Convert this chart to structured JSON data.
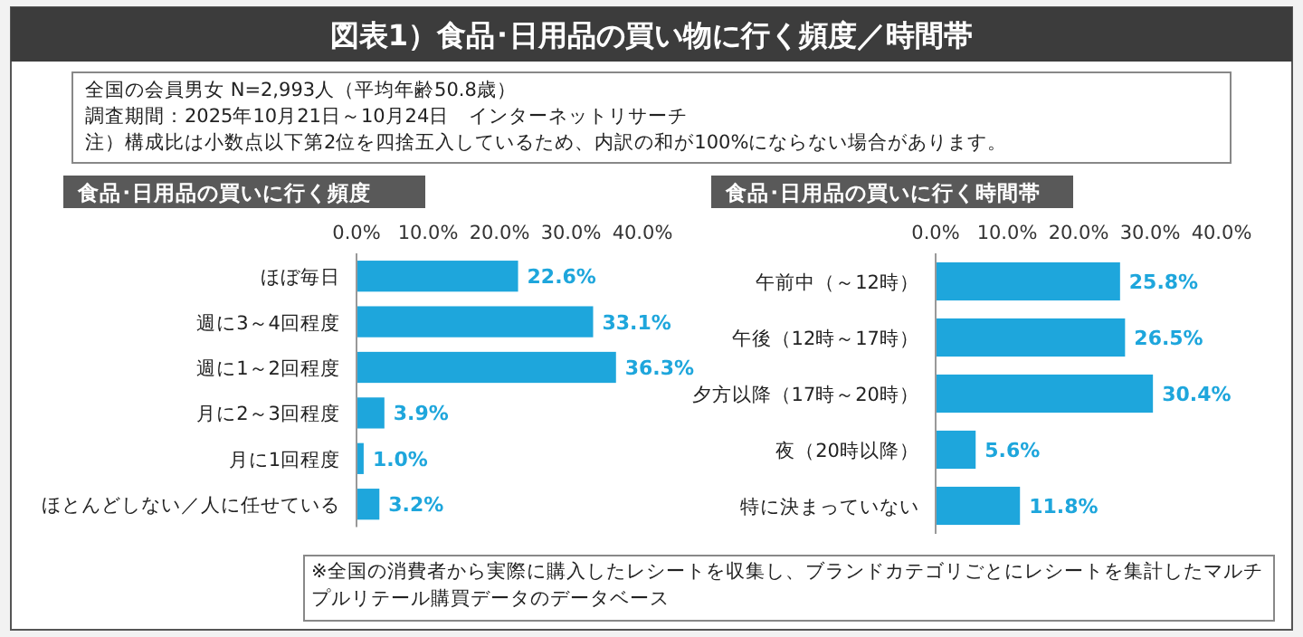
{
  "chart_data": [
    {
      "type": "bar",
      "orientation": "horizontal",
      "title": "図表1）食品･日用品の買い物に行く頻度／時間帯",
      "subtitle": "食品･日用品の買いに行く頻度",
      "annotations": [
        "全国の会員男女 N=2,993人（平均年齢50.8歳）",
        "調査期間：2025年10月21日～10月24日　インターネットリサーチ",
        "注）構成比は小数点以下第2位を四捨五入しているため、内訳の和が100%にならない場合があります。"
      ],
      "categories": [
        "ほぼ毎日",
        "週に3～4回程度",
        "週に1～2回程度",
        "月に2～3回程度",
        "月に1回程度",
        "ほとんどしない／人に任せている"
      ],
      "values": [
        22.6,
        33.1,
        36.3,
        3.9,
        1.0,
        3.2
      ],
      "value_labels": [
        "22.6%",
        "33.1%",
        "36.3%",
        "3.9%",
        "1.0%",
        "3.2%"
      ],
      "color": "#1ea6dc",
      "xlim": [
        0,
        40
      ],
      "xticks": [
        {
          "value": 0,
          "label": "0.0%"
        },
        {
          "value": 10,
          "label": "10.0%"
        },
        {
          "value": 20,
          "label": "20.0%"
        },
        {
          "value": 30,
          "label": "30.0%"
        },
        {
          "value": 40,
          "label": "40.0%"
        }
      ],
      "grid": false
    },
    {
      "type": "bar",
      "orientation": "horizontal",
      "title": "食品･日用品の買いに行く時間帯",
      "annotations": [
        "※全国の消費者から実際に購入したレシートを収集し、ブランドカテゴリごとにレシートを集計したマルチプルリテール購買データのデータベース"
      ],
      "categories": [
        "午前中（～12時）",
        "午後（12時～17時）",
        "夕方以降（17時～20時）",
        "夜（20時以降）",
        "特に決まっていない"
      ],
      "values": [
        25.8,
        26.5,
        30.4,
        5.6,
        11.8
      ],
      "value_labels": [
        "25.8%",
        "26.5%",
        "30.4%",
        "5.6%",
        "11.8%"
      ],
      "color": "#1ea6dc",
      "xlim": [
        0,
        40
      ],
      "xticks": [
        {
          "value": 0,
          "label": "0.0%"
        },
        {
          "value": 10,
          "label": "10.0%"
        },
        {
          "value": 20,
          "label": "20.0%"
        },
        {
          "value": 30,
          "label": "30.0%"
        },
        {
          "value": 40,
          "label": "40.0%"
        }
      ],
      "grid": false
    }
  ]
}
